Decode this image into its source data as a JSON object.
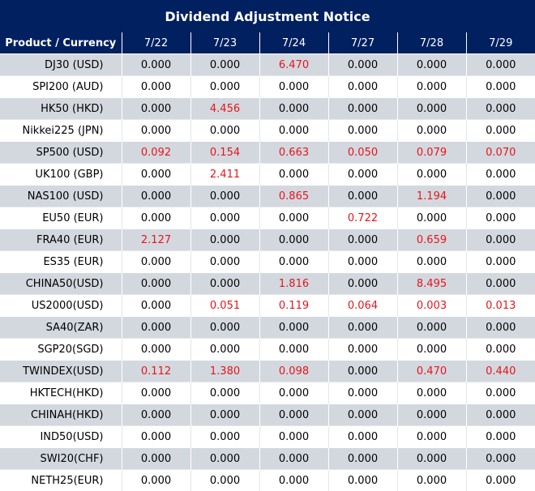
{
  "title": "Dividend Adjustment Notice",
  "header": {
    "product": "Product / Currency",
    "dates": [
      "7/22",
      "7/23",
      "7/24",
      "7/27",
      "7/28",
      "7/29"
    ]
  },
  "colors": {
    "header_bg": "#002060",
    "shade_row": "#d3d8df",
    "highlight_text": "#e8151b"
  },
  "rows": [
    {
      "product": "DJ30 (USD)",
      "values": [
        "0.000",
        "0.000",
        "6.470",
        "0.000",
        "0.000",
        "0.000"
      ]
    },
    {
      "product": "SPI200 (AUD)",
      "values": [
        "0.000",
        "0.000",
        "0.000",
        "0.000",
        "0.000",
        "0.000"
      ]
    },
    {
      "product": "HK50 (HKD)",
      "values": [
        "0.000",
        "4.456",
        "0.000",
        "0.000",
        "0.000",
        "0.000"
      ]
    },
    {
      "product": "Nikkei225 (JPN)",
      "values": [
        "0.000",
        "0.000",
        "0.000",
        "0.000",
        "0.000",
        "0.000"
      ]
    },
    {
      "product": "SP500 (USD)",
      "values": [
        "0.092",
        "0.154",
        "0.663",
        "0.050",
        "0.079",
        "0.070"
      ]
    },
    {
      "product": "UK100 (GBP)",
      "values": [
        "0.000",
        "2.411",
        "0.000",
        "0.000",
        "0.000",
        "0.000"
      ]
    },
    {
      "product": "NAS100 (USD)",
      "values": [
        "0.000",
        "0.000",
        "0.865",
        "0.000",
        "1.194",
        "0.000"
      ]
    },
    {
      "product": "EU50 (EUR)",
      "values": [
        "0.000",
        "0.000",
        "0.000",
        "0.722",
        "0.000",
        "0.000"
      ]
    },
    {
      "product": "FRA40 (EUR)",
      "values": [
        "2.127",
        "0.000",
        "0.000",
        "0.000",
        "0.659",
        "0.000"
      ]
    },
    {
      "product": "ES35 (EUR)",
      "values": [
        "0.000",
        "0.000",
        "0.000",
        "0.000",
        "0.000",
        "0.000"
      ]
    },
    {
      "product": "CHINA50(USD)",
      "values": [
        "0.000",
        "0.000",
        "1.816",
        "0.000",
        "8.495",
        "0.000"
      ]
    },
    {
      "product": "US2000(USD)",
      "values": [
        "0.000",
        "0.051",
        "0.119",
        "0.064",
        "0.003",
        "0.013"
      ]
    },
    {
      "product": "SA40(ZAR)",
      "values": [
        "0.000",
        "0.000",
        "0.000",
        "0.000",
        "0.000",
        "0.000"
      ]
    },
    {
      "product": "SGP20(SGD)",
      "values": [
        "0.000",
        "0.000",
        "0.000",
        "0.000",
        "0.000",
        "0.000"
      ]
    },
    {
      "product": "TWINDEX(USD)",
      "values": [
        "0.112",
        "1.380",
        "0.098",
        "0.000",
        "0.470",
        "0.440"
      ]
    },
    {
      "product": "HKTECH(HKD)",
      "values": [
        "0.000",
        "0.000",
        "0.000",
        "0.000",
        "0.000",
        "0.000"
      ]
    },
    {
      "product": "CHINAH(HKD)",
      "values": [
        "0.000",
        "0.000",
        "0.000",
        "0.000",
        "0.000",
        "0.000"
      ]
    },
    {
      "product": "IND50(USD)",
      "values": [
        "0.000",
        "0.000",
        "0.000",
        "0.000",
        "0.000",
        "0.000"
      ]
    },
    {
      "product": "SWI20(CHF)",
      "values": [
        "0.000",
        "0.000",
        "0.000",
        "0.000",
        "0.000",
        "0.000"
      ]
    },
    {
      "product": "NETH25(EUR)",
      "values": [
        "0.000",
        "0.000",
        "0.000",
        "0.000",
        "0.000",
        "0.000"
      ]
    }
  ]
}
